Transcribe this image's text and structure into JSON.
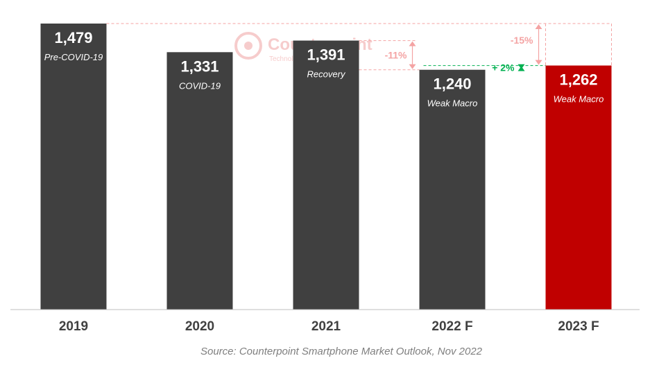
{
  "chart_data": {
    "type": "bar",
    "categories": [
      "2019",
      "2020",
      "2021",
      "2022 F",
      "2023 F"
    ],
    "values": [
      1479,
      1331,
      1391,
      1240,
      1262
    ],
    "value_labels": [
      "1,479",
      "1,331",
      "1,391",
      "1,240",
      "1,262"
    ],
    "bar_annotations": [
      "Pre-COVID-19",
      "COVID-19",
      "Recovery",
      "Weak Macro",
      "Weak Macro"
    ],
    "highlight_index": 4,
    "title": "",
    "xlabel": "",
    "ylabel": "",
    "ylim": [
      0,
      1479
    ],
    "grid": false,
    "legend": "none",
    "change_annotations": [
      {
        "label": "-15%",
        "from": "2019",
        "to": "2023 F"
      },
      {
        "label": "-11%",
        "from": "2021",
        "to": "2022 F"
      },
      {
        "label": "+ 2%",
        "from": "2022 F",
        "to": "2023 F"
      }
    ]
  },
  "colors": {
    "bar": "#404040",
    "highlight": "#c00000",
    "decline": "#f4a3a3",
    "growth": "#00b050",
    "axis": "#bfbfbf"
  },
  "watermark": {
    "brand": "Counterpoint",
    "tagline": "Technology Market Research",
    "icon": "counterpoint-logo-icon"
  },
  "source": "Source: Counterpoint Smartphone Market Outlook, Nov 2022"
}
